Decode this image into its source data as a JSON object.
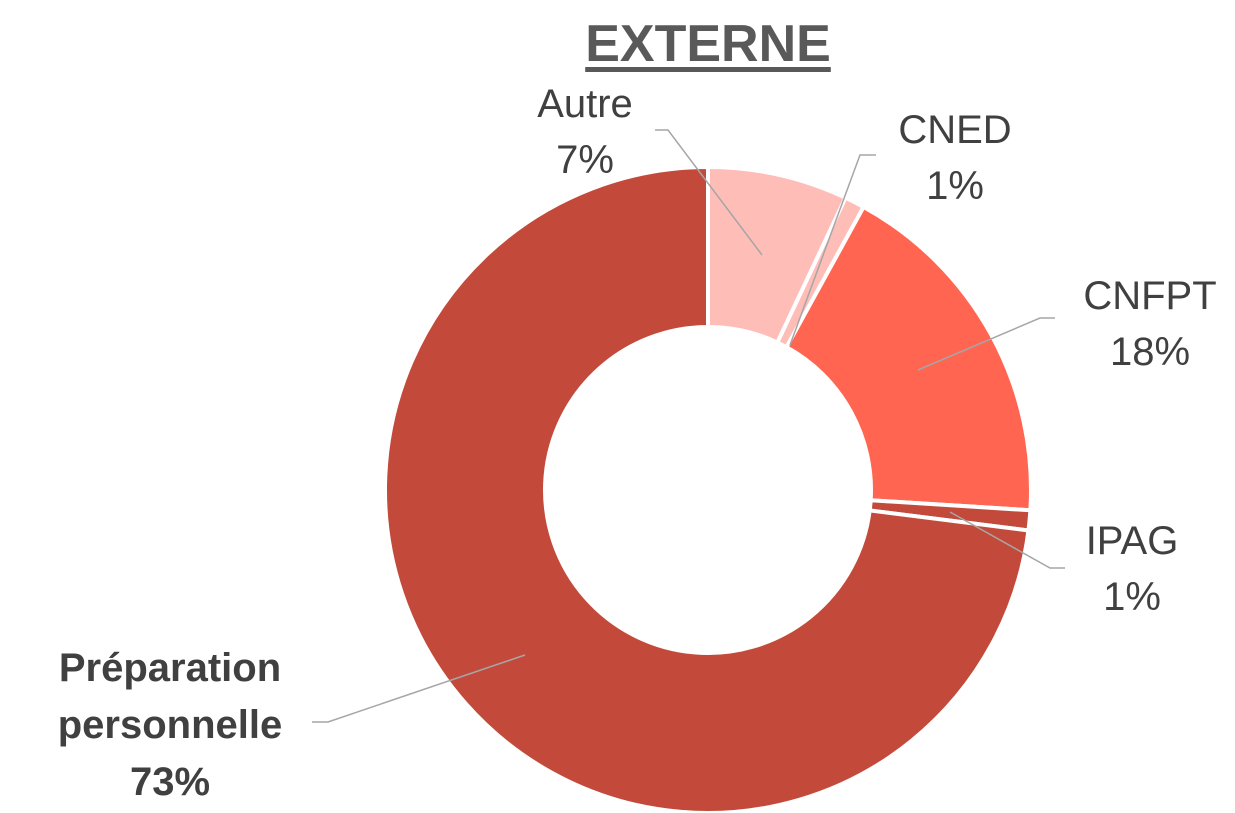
{
  "chart_data": {
    "type": "pie",
    "donut": true,
    "title": "EXTERNE",
    "categories": [
      "Autre",
      "CNED",
      "CNFPT",
      "IPAG",
      "Préparation personnelle"
    ],
    "values": [
      7,
      1,
      18,
      1,
      73
    ],
    "value_labels": [
      "7%",
      "1%",
      "18%",
      "1%",
      "73%"
    ],
    "colors": [
      "#ffbdb8",
      "#ffbdb8",
      "#ff6550",
      "#c34a3b",
      "#c34a3b"
    ]
  }
}
